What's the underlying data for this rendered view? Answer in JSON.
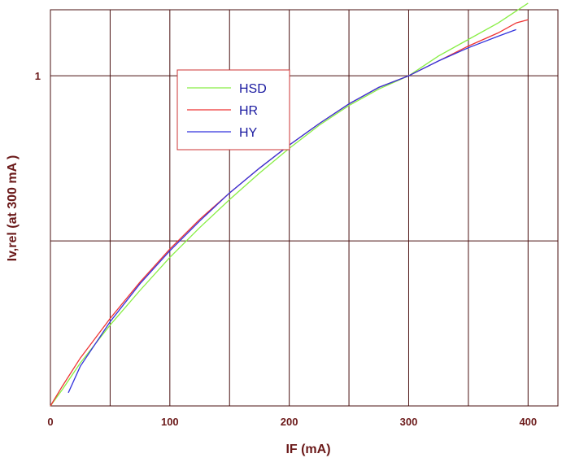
{
  "chart_data": {
    "type": "line",
    "title": "",
    "xlabel": "IF (mA)",
    "ylabel": "Iv,rel (at 300 mA )",
    "xlim": [
      0,
      425
    ],
    "ylim": [
      0,
      1.2
    ],
    "x_ticks": [
      {
        "value": 0,
        "label": "0"
      },
      {
        "value": 100,
        "label": "100"
      },
      {
        "value": 200,
        "label": "200"
      },
      {
        "value": 300,
        "label": "300"
      },
      {
        "value": 400,
        "label": "400"
      }
    ],
    "y_ticks": [
      {
        "value": 1,
        "label": "1"
      }
    ],
    "x_grid": [
      50,
      100,
      150,
      200,
      250,
      300,
      350,
      400
    ],
    "y_grid": [
      0.5,
      1.0
    ],
    "grid": true,
    "legend_position": "top-left",
    "series": [
      {
        "name": "HSD",
        "color": "#88ee44",
        "x": [
          0,
          10,
          25,
          50,
          75,
          100,
          125,
          150,
          175,
          200,
          225,
          250,
          275,
          300,
          325,
          350,
          375,
          400
        ],
        "y": [
          0,
          0.05,
          0.13,
          0.245,
          0.35,
          0.45,
          0.54,
          0.625,
          0.705,
          0.78,
          0.85,
          0.91,
          0.96,
          1.0,
          1.06,
          1.11,
          1.16,
          1.22
        ]
      },
      {
        "name": "HR",
        "color": "#ee3333",
        "x": [
          0,
          10,
          25,
          50,
          75,
          100,
          125,
          150,
          175,
          200,
          225,
          250,
          275,
          300,
          325,
          350,
          375,
          390,
          400
        ],
        "y": [
          0,
          0.06,
          0.145,
          0.265,
          0.375,
          0.475,
          0.565,
          0.645,
          0.72,
          0.79,
          0.855,
          0.915,
          0.965,
          1.0,
          1.045,
          1.09,
          1.13,
          1.16,
          1.17
        ]
      },
      {
        "name": "HY",
        "color": "#3333dd",
        "x": [
          15,
          25,
          50,
          75,
          100,
          125,
          150,
          175,
          200,
          225,
          250,
          275,
          300,
          325,
          350,
          375,
          390
        ],
        "y": [
          0.04,
          0.12,
          0.255,
          0.37,
          0.47,
          0.56,
          0.645,
          0.72,
          0.79,
          0.855,
          0.915,
          0.965,
          1.0,
          1.045,
          1.085,
          1.12,
          1.14
        ]
      }
    ]
  }
}
